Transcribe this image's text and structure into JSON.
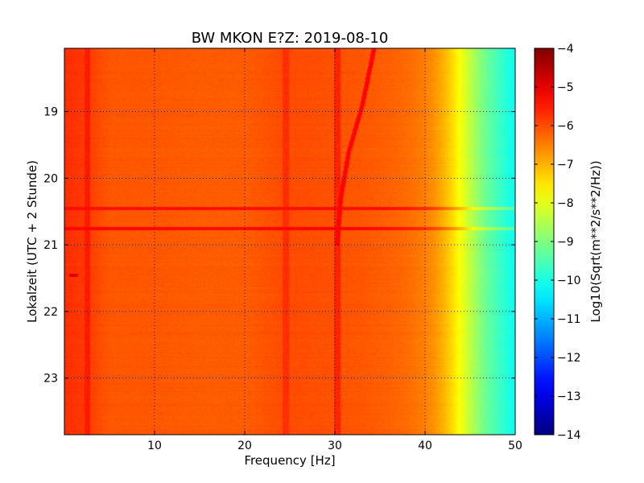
{
  "chart_data": {
    "type": "heatmap",
    "title": "BW MKON E?Z: 2019-08-10",
    "xlabel": "Frequency [Hz]",
    "ylabel": "Lokalzeit (UTC + 2 Stunde)",
    "xlim": [
      0,
      50
    ],
    "ylim": [
      18.05,
      23.85
    ],
    "y_inverted": true,
    "x_ticks": [
      10,
      20,
      30,
      40,
      50
    ],
    "y_ticks": [
      19,
      20,
      21,
      22,
      23
    ],
    "grid": true,
    "colorbar": {
      "label": "Log10(Sqrt(m**2/s**2/Hz))",
      "min": -14,
      "max": -4,
      "ticks": [
        -4,
        -5,
        -6,
        -7,
        -8,
        -9,
        -10,
        -11,
        -12,
        -13,
        -14
      ],
      "colormap": "jet"
    },
    "spectral_profile": {
      "frequency_hz": [
        0,
        2,
        5,
        10,
        15,
        20,
        24,
        26,
        30,
        33,
        36,
        38,
        40,
        41,
        42,
        43,
        44,
        45,
        46,
        47,
        48,
        49,
        50
      ],
      "log10_amplitude": [
        -5.7,
        -5.8,
        -6.1,
        -6.1,
        -6.15,
        -6.15,
        -6.0,
        -6.0,
        -6.05,
        -6.1,
        -6.2,
        -6.3,
        -6.5,
        -6.7,
        -7.0,
        -7.4,
        -7.9,
        -8.4,
        -8.9,
        -9.3,
        -9.6,
        -9.9,
        -10.2
      ]
    },
    "features": [
      {
        "kind": "horizontal_band",
        "time": 20.45,
        "log10_amplitude": -5.4
      },
      {
        "kind": "horizontal_band",
        "time": 20.75,
        "log10_amplitude": -5.3
      },
      {
        "kind": "horizontal_band",
        "time": 21.45,
        "freq_range": [
          0.5,
          1.5
        ],
        "log10_amplitude": -4.9
      },
      {
        "kind": "vertical_band",
        "freq": 2.5,
        "log10_amplitude": -5.5
      },
      {
        "kind": "vertical_band",
        "freq": 24.5,
        "log10_amplitude": -5.7
      },
      {
        "kind": "vertical_band",
        "freq": 30.2,
        "log10_amplitude": -5.6
      },
      {
        "kind": "drifting_line",
        "points": [
          [
            34.3,
            18.05
          ],
          [
            33.0,
            18.9
          ],
          [
            31.5,
            19.6
          ],
          [
            30.6,
            20.3
          ],
          [
            30.2,
            21.0
          ]
        ],
        "log10_amplitude": -5.3
      }
    ]
  }
}
